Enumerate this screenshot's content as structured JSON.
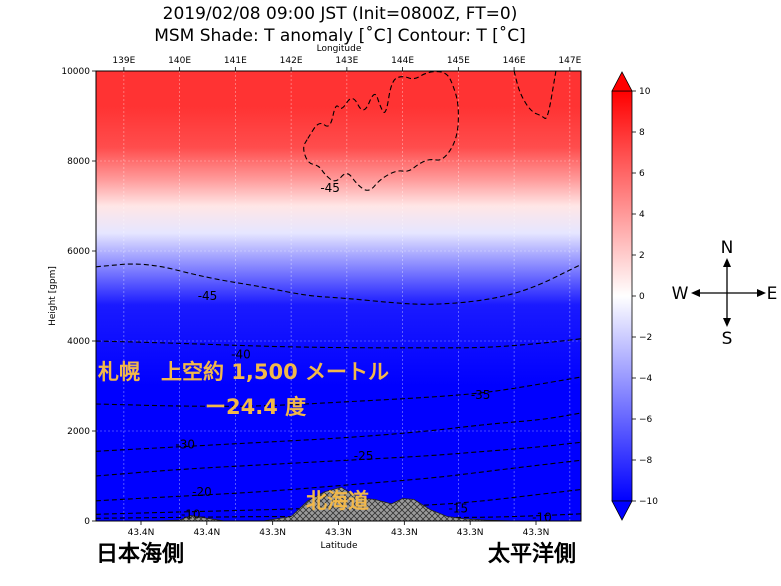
{
  "title_line1": "2019/02/08 09:00 JST  (Init=0800Z, FT=0)",
  "title_line2": "MSM  Shade: T anomaly [˚C]    Contour: T [˚C]",
  "compass": {
    "n": "N",
    "s": "S",
    "e": "E",
    "w": "W"
  },
  "side_left": "日本海側",
  "side_right": "太平洋側",
  "annotation_line1": "札幌　上空約 1,500 メートル",
  "annotation_line2": "ー24.4 度",
  "terrain_label": "北海道",
  "colors": {
    "anomaly_neg": "#0000ff",
    "anomaly_zero": "#ffffff",
    "anomaly_pos": "#ff0000",
    "terrain": "#9a9a9a",
    "contour": "#000000",
    "annotation": "#f2b84a"
  },
  "chart_data": {
    "type": "heatmap",
    "xlabel": "Latitude",
    "x2label": "Longitude",
    "ylabel": "Height [gpm]",
    "ylim": [
      0,
      10000
    ],
    "yticks": [
      0,
      2000,
      4000,
      6000,
      8000,
      10000
    ],
    "bottom_ticks": [
      "43.4N",
      "43.4N",
      "43.3N",
      "43.3N",
      "43.3N",
      "43.3N",
      "43.3N"
    ],
    "top_ticks": [
      "139E",
      "140E",
      "141E",
      "142E",
      "143E",
      "144E",
      "145E",
      "146E",
      "147E"
    ],
    "top_tick_positions": [
      139,
      140,
      141,
      142,
      143,
      144,
      145,
      146,
      147
    ],
    "xlim_lon": [
      138.5,
      147.2
    ],
    "grid": true,
    "colorbar": {
      "min": -10,
      "max": 10,
      "ticks": [
        -10,
        -8,
        -6,
        -4,
        -2,
        0,
        2,
        4,
        6,
        8,
        10
      ],
      "extend": "both"
    },
    "anomaly_profile": [
      {
        "h": 0,
        "v": -10
      },
      {
        "h": 3000,
        "v": -10
      },
      {
        "h": 4800,
        "v": -9
      },
      {
        "h": 5600,
        "v": -5
      },
      {
        "h": 6400,
        "v": -1
      },
      {
        "h": 7000,
        "v": 1
      },
      {
        "h": 7600,
        "v": 4
      },
      {
        "h": 8300,
        "v": 7
      },
      {
        "h": 9200,
        "v": 8
      },
      {
        "h": 10000,
        "v": 8
      }
    ],
    "contours": [
      {
        "label": "-45",
        "lon": [
          138.5,
          139.4,
          140.5,
          141.5,
          142.3,
          143,
          143.8,
          144.5,
          145.5,
          146.3,
          147.2
        ],
        "h": [
          5650,
          5750,
          5400,
          5200,
          5000,
          4950,
          4850,
          4800,
          4900,
          5150,
          5700
        ]
      },
      {
        "label": "-40",
        "lon": [
          138.5,
          140,
          141.5,
          143,
          144.5,
          145.5,
          146.5,
          147.2
        ],
        "h": [
          4000,
          3950,
          3880,
          3850,
          3850,
          3850,
          3950,
          4050
        ]
      },
      {
        "label": "-35",
        "lon": [
          138.5,
          140,
          141.5,
          143,
          144.5,
          145.5,
          146.5,
          147.2
        ],
        "h": [
          2600,
          2550,
          2550,
          2650,
          2750,
          2850,
          3050,
          3200
        ]
      },
      {
        "label": "-30",
        "lon": [
          138.5,
          140,
          141.5,
          143,
          144.5,
          145.5,
          146.5,
          147.2
        ],
        "h": [
          1550,
          1650,
          1750,
          1850,
          2000,
          2150,
          2250,
          2400
        ]
      },
      {
        "label": "-25",
        "lon": [
          138.5,
          140,
          141.5,
          143,
          144.5,
          145.5,
          146.5,
          147.2
        ],
        "h": [
          1000,
          1150,
          1250,
          1350,
          1450,
          1550,
          1650,
          1750
        ]
      },
      {
        "label": "-20",
        "lon": [
          138.5,
          140,
          141.5,
          143,
          144.5,
          145.5,
          146.5,
          147.2
        ],
        "h": [
          450,
          550,
          650,
          800,
          950,
          1100,
          1250,
          1350
        ]
      },
      {
        "label": "-15",
        "lon": [
          138.5,
          140,
          141.5,
          143,
          144.5,
          145.5,
          146.5,
          147.2
        ],
        "h": [
          150,
          200,
          250,
          300,
          350,
          450,
          600,
          700
        ]
      },
      {
        "label": "-10",
        "lon": [
          138.5,
          140,
          141.5,
          143,
          144.5,
          145.5,
          146.5,
          147.2
        ],
        "h": [
          60,
          80,
          100,
          100,
          80,
          80,
          120,
          160
        ]
      },
      {
        "label": "",
        "lon": [
          142.3,
          142.5,
          142.7,
          142.8,
          142.9,
          143.1,
          143.3,
          143.5,
          143.6,
          143.7,
          143.8,
          144.0,
          144.2,
          144.4,
          144.6,
          144.8,
          144.9,
          145.0,
          145.0,
          144.9,
          144.7,
          144.5,
          144.3,
          144.1,
          143.9,
          143.6,
          143.4,
          143.2,
          143.0,
          142.8,
          142.6,
          142.5,
          142.3,
          142.2,
          142.3
        ],
        "h": [
          8500,
          8900,
          8700,
          9300,
          9100,
          9500,
          9000,
          9600,
          9200,
          9000,
          9800,
          9900,
          9800,
          9950,
          10000,
          9950,
          9700,
          9300,
          8700,
          8300,
          8000,
          8050,
          7950,
          7750,
          7800,
          7600,
          7300,
          7450,
          7800,
          7500,
          7700,
          7900,
          7950,
          8300,
          8500
        ]
      },
      {
        "label": "",
        "lon": [
          146.0,
          146.1,
          146.3,
          146.5,
          146.6,
          146.75
        ],
        "h": [
          10000,
          9500,
          9100,
          9000,
          8900,
          10000
        ]
      }
    ],
    "contour_labels": [
      {
        "text": "-45",
        "lon": 142.7,
        "h": 7400
      },
      {
        "text": "-45",
        "lon": 140.5,
        "h": 5000
      },
      {
        "text": "-40",
        "lon": 141.1,
        "h": 3700
      },
      {
        "text": "-35",
        "lon": 145.4,
        "h": 2800
      },
      {
        "text": "-30",
        "lon": 140.1,
        "h": 1700
      },
      {
        "text": "-25",
        "lon": 143.3,
        "h": 1450
      },
      {
        "text": "-20",
        "lon": 140.4,
        "h": 650
      },
      {
        "text": "-15",
        "lon": 145.0,
        "h": 280
      },
      {
        "text": "-10",
        "lon": 146.5,
        "h": 80
      },
      {
        "text": "-10",
        "lon": 140.2,
        "h": 150
      }
    ],
    "terrain": {
      "lon": [
        138.5,
        139.5,
        140.0,
        140.2,
        140.5,
        140.8,
        141.5,
        142.0,
        142.3,
        142.6,
        142.9,
        143.1,
        143.3,
        143.5,
        143.8,
        144.0,
        144.2,
        144.5,
        144.8,
        145.1,
        145.5,
        146.0,
        147.2
      ],
      "h": [
        0,
        0,
        20,
        120,
        60,
        0,
        0,
        100,
        450,
        650,
        750,
        600,
        500,
        480,
        380,
        500,
        480,
        250,
        100,
        50,
        20,
        0,
        0
      ]
    }
  }
}
